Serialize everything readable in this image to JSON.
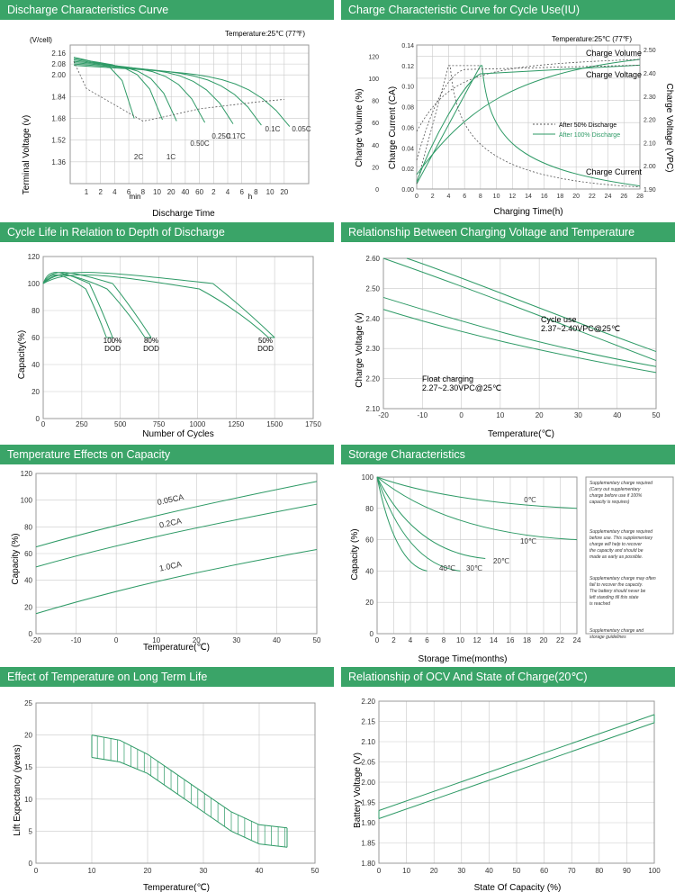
{
  "panels": {
    "discharge": {
      "title": "Discharge Characteristics Curve"
    },
    "charge": {
      "title": "Charge Characteristic Curve for Cycle Use(IU)"
    },
    "cycle_life": {
      "title": "Cycle Life in Relation to Depth of Discharge"
    },
    "charge_voltage": {
      "title": "Relationship Between Charging Voltage and Temperature"
    },
    "temp_capacity": {
      "title": "Temperature Effects on Capacity"
    },
    "storage": {
      "title": "Storage Characteristics"
    },
    "temp_life": {
      "title": "Effect of Temperature on Long Term Life"
    },
    "ocv": {
      "title": "Relationship of OCV And State of Charge(20℃)"
    }
  },
  "colors": {
    "header": "#3aa468",
    "curve": "#2e9a66",
    "grid": "#c9c9c9",
    "dash": "#555555"
  },
  "chart_data": [
    {
      "id": "discharge",
      "type": "line",
      "ylabel": "Terminal Voltage (v)",
      "yunit": "(V/cell)",
      "xlabel": "Discharge Time",
      "xunit_left": "min",
      "xunit_right": "h",
      "annotation": "Temperature:25℃ (77℉)",
      "yticks": [
        "1.36",
        "1.52",
        "1.68",
        "1.84",
        "2.00",
        "2.08",
        "2.16"
      ],
      "xticks": [
        "1",
        "2",
        "4",
        "6",
        "8",
        "10",
        "20",
        "40",
        "60",
        "2",
        "4",
        "6",
        "8",
        "10",
        "20"
      ],
      "series": [
        {
          "name": "2C",
          "end": "2 min"
        },
        {
          "name": "1C",
          "end": "4 min"
        },
        {
          "name": "0.50C",
          "end": "10 min"
        },
        {
          "name": "0.25C",
          "end": "20 min"
        },
        {
          "name": "0.17C",
          "end": "40 min"
        },
        {
          "name": "0.1C",
          "end": "8 h"
        },
        {
          "name": "0.05C",
          "end": "20 h"
        }
      ]
    },
    {
      "id": "charge",
      "type": "line",
      "xlabel": "Charging Time(h)",
      "ylabel_volume": "Charge Volume (%)",
      "ylabel_current": "Charge Current (CA)",
      "ylabel_voltage": "Charge Voltage (VPC)",
      "annotation": "Temperature:25℃ (77℉)",
      "xticks": [
        "0",
        "2",
        "4",
        "6",
        "8",
        "10",
        "12",
        "14",
        "16",
        "18",
        "20",
        "22",
        "24",
        "26",
        "28"
      ],
      "volume_ticks": [
        "0",
        "20",
        "40",
        "60",
        "80",
        "100",
        "120"
      ],
      "current_ticks": [
        "0.00",
        "0.02",
        "0.04",
        "0.06",
        "0.08",
        "0.10",
        "0.12",
        "0.14"
      ],
      "voltage_ticks": [
        "1.90",
        "2.00",
        "2.10",
        "2.20",
        "2.30",
        "2.40",
        "2.50"
      ],
      "labels": {
        "volume": "Charge Volume",
        "voltage": "Charge Voltage",
        "current": "Charge Current"
      },
      "legend": [
        "After 50% Discharge",
        "After 100% Discharge"
      ]
    },
    {
      "id": "cycle_life",
      "type": "line",
      "ylabel": "Capacity(%)",
      "xlabel": "Number of Cycles",
      "xticks": [
        "0",
        "250",
        "500",
        "750",
        "1000",
        "1250",
        "1500",
        "1750"
      ],
      "yticks": [
        "0",
        "20",
        "40",
        "60",
        "80",
        "100",
        "120"
      ],
      "series": [
        {
          "name": "100% DOD",
          "line1": "100%",
          "line2": "DOD",
          "cycles": [
            0,
            100,
            300,
            450
          ],
          "capacity": [
            100,
            110,
            100,
            60
          ]
        },
        {
          "name": "80% DOD",
          "line1": "80%",
          "line2": "DOD",
          "cycles": [
            0,
            150,
            450,
            700
          ],
          "capacity": [
            100,
            110,
            100,
            60
          ]
        },
        {
          "name": "50% DOD",
          "line1": "50%",
          "line2": "DOD",
          "cycles": [
            0,
            300,
            1100,
            1500
          ],
          "capacity": [
            100,
            110,
            100,
            60
          ]
        }
      ]
    },
    {
      "id": "charge_voltage",
      "type": "line",
      "ylabel": "Charge Voltage (v)",
      "xlabel": "Temperature(℃)",
      "xticks": [
        "-20",
        "-10",
        "0",
        "10",
        "20",
        "30",
        "40",
        "50"
      ],
      "yticks": [
        "2.10",
        "2.20",
        "2.30",
        "2.40",
        "2.50",
        "2.60"
      ],
      "labels": {
        "cycle_1": "Cycle use",
        "cycle_2": "2.37~2.40VPC@25℃",
        "float_1": "Float charging",
        "float_2": "2.27~2.30VPC@25℃"
      }
    },
    {
      "id": "temp_capacity",
      "type": "line",
      "ylabel": "Capacity (%)",
      "xlabel": "Temperature(℃)",
      "xticks": [
        "-20",
        "-10",
        "0",
        "10",
        "20",
        "30",
        "40",
        "50"
      ],
      "yticks": [
        "0",
        "20",
        "40",
        "60",
        "80",
        "100",
        "120"
      ],
      "series": [
        {
          "name": "0.05CA",
          "x": [
            -20,
            0,
            20,
            50
          ],
          "y": [
            65,
            82,
            96,
            114
          ]
        },
        {
          "name": "0.2CA",
          "x": [
            -20,
            0,
            20,
            50
          ],
          "y": [
            50,
            67,
            80,
            97
          ]
        },
        {
          "name": "1.0CA",
          "x": [
            -20,
            0,
            20,
            50
          ],
          "y": [
            15,
            33,
            47,
            63
          ]
        }
      ]
    },
    {
      "id": "storage",
      "type": "line",
      "ylabel": "Capacity (%)",
      "xlabel": "Storage  Time(months)",
      "xticks": [
        "0",
        "2",
        "4",
        "6",
        "8",
        "10",
        "12",
        "14",
        "16",
        "18",
        "20",
        "22",
        "24"
      ],
      "yticks": [
        "0",
        "20",
        "40",
        "60",
        "80",
        "100"
      ],
      "series": [
        {
          "name": "0℃"
        },
        {
          "name": "10℃"
        },
        {
          "name": "20℃"
        },
        {
          "name": "30℃"
        },
        {
          "name": "40℃"
        }
      ],
      "notes": [
        "Supplementary charge required (Carry out supplementary charge before use if 100% capacity is requires)",
        "Supplementary charge required before use. This supplementary charge will help to recover the capacity and should be made  as early as possible.",
        "Supplementary charge may often fail to recover the capacity. The battery should never be left standing till this state is reached",
        "Supplementary charge and storage guidelines"
      ]
    },
    {
      "id": "temp_life",
      "type": "area",
      "ylabel": "Lift Expectancy  (years)",
      "xlabel": "Temperature(℃)",
      "xticks": [
        "0",
        "10",
        "20",
        "30",
        "40",
        "50"
      ],
      "yticks": [
        "0",
        "5",
        "10",
        "15",
        "20",
        "25"
      ],
      "upper": {
        "x": [
          10,
          15,
          20,
          25,
          30,
          35,
          40,
          45
        ],
        "y": [
          20,
          19.2,
          17,
          14,
          11,
          8,
          6,
          5.5
        ]
      },
      "lower": {
        "x": [
          10,
          15,
          20,
          25,
          30,
          35,
          40,
          45
        ],
        "y": [
          16.5,
          15.8,
          14,
          11,
          8,
          5,
          3,
          2.5
        ]
      }
    },
    {
      "id": "ocv",
      "type": "line",
      "ylabel": "Battery Voltage (V)",
      "xlabel": "State Of Capacity (%)",
      "xticks": [
        "0",
        "10",
        "20",
        "30",
        "40",
        "50",
        "60",
        "70",
        "80",
        "90",
        "100"
      ],
      "yticks": [
        "1.80",
        "1.85",
        "1.90",
        "1.95",
        "2.00",
        "2.05",
        "2.10",
        "2.15",
        "2.20"
      ],
      "upper": {
        "x": [
          0,
          100
        ],
        "y": [
          1.93,
          2.167
        ]
      },
      "lower": {
        "x": [
          0,
          100
        ],
        "y": [
          1.91,
          2.147
        ]
      }
    }
  ]
}
